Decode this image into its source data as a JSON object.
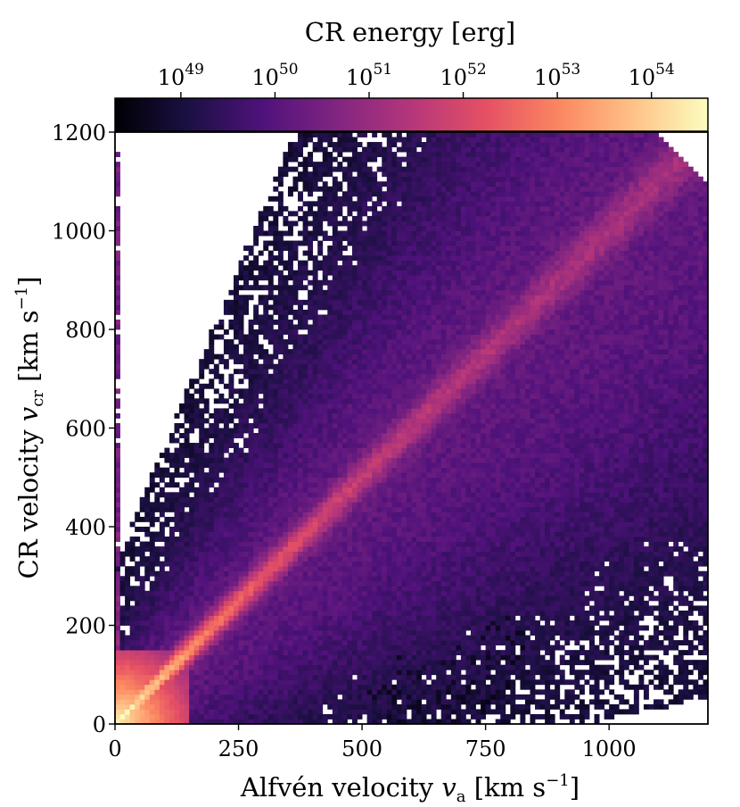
{
  "chart_data": {
    "type": "heatmap",
    "title": "",
    "xlabel": "Alfvén velocity",
    "xlabel_symbol": "v",
    "xlabel_sub": "a",
    "xlabel_unit": "[km s",
    "xlabel_unit_exp": "−1",
    "xlabel_unit_close": "]",
    "ylabel": "CR velocity",
    "ylabel_symbol": "v",
    "ylabel_sub": "cr",
    "ylabel_unit": "[km s",
    "ylabel_unit_exp": "−1",
    "ylabel_unit_close": "]",
    "xlim": [
      0,
      1200
    ],
    "ylim": [
      0,
      1200
    ],
    "x_ticks": [
      {
        "value": 0,
        "label": "0"
      },
      {
        "value": 250,
        "label": "250"
      },
      {
        "value": 500,
        "label": "500"
      },
      {
        "value": 750,
        "label": "750"
      },
      {
        "value": 1000,
        "label": "1000"
      }
    ],
    "y_ticks": [
      {
        "value": 0,
        "label": "0"
      },
      {
        "value": 200,
        "label": "200"
      },
      {
        "value": 400,
        "label": "400"
      },
      {
        "value": 600,
        "label": "600"
      },
      {
        "value": 800,
        "label": "800"
      },
      {
        "value": 1000,
        "label": "1000"
      },
      {
        "value": 1200,
        "label": "1200"
      }
    ],
    "colorbar": {
      "label": "CR energy [erg]",
      "scale": "log",
      "colormap": "magma",
      "range": [
        48.3,
        54.6
      ],
      "ticks": [
        {
          "value": 49,
          "base": "10",
          "exp": "49"
        },
        {
          "value": 50,
          "base": "10",
          "exp": "50"
        },
        {
          "value": 51,
          "base": "10",
          "exp": "51"
        },
        {
          "value": 52,
          "base": "10",
          "exp": "52"
        },
        {
          "value": 53,
          "base": "10",
          "exp": "53"
        },
        {
          "value": 54,
          "base": "10",
          "exp": "54"
        }
      ],
      "placement": "top"
    },
    "bin_size": 10,
    "distribution": {
      "ridge": "v_cr ≈ v_a (bright diagonal from origin to ~1150 km/s)",
      "peak_log_energy": 54.5,
      "peak_location": [
        10,
        20
      ],
      "vertical_streak_x": 5,
      "vertical_streak_ymax": 1160
    },
    "grid": false,
    "legend": "none",
    "colors": {
      "magma_stops": [
        "#000004",
        "#1c1044",
        "#4f127b",
        "#812581",
        "#b5367a",
        "#e55064",
        "#fb8761",
        "#fec287",
        "#fcfdbf"
      ]
    }
  }
}
